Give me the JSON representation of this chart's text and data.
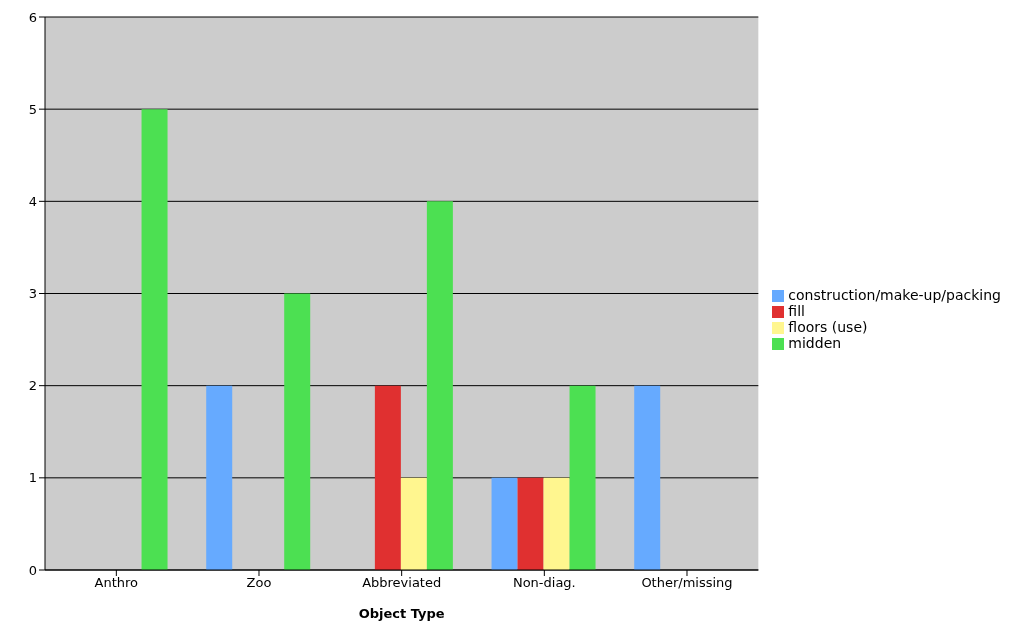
{
  "chart_data": {
    "type": "bar",
    "xlabel": "Object Type",
    "categories": [
      "Anthro",
      "Zoo",
      "Abbreviated",
      "Non-diag.",
      "Other/missing"
    ],
    "series": [
      {
        "name": "construction/make-up/packing",
        "color": "#66aaff",
        "values": [
          0,
          2,
          0,
          1,
          2
        ]
      },
      {
        "name": "fill",
        "color": "#e03030",
        "values": [
          0,
          0,
          2,
          1,
          0
        ]
      },
      {
        "name": "floors (use)",
        "color": "#fff68f",
        "values": [
          0,
          0,
          1,
          1,
          0
        ]
      },
      {
        "name": "midden",
        "color": "#4ce052",
        "values": [
          5,
          3,
          4,
          2,
          0
        ]
      }
    ],
    "ylim": [
      0,
      6
    ],
    "yticks": [
      0,
      1,
      2,
      3,
      4,
      5,
      6
    ],
    "grid": "y",
    "legend": "right"
  }
}
